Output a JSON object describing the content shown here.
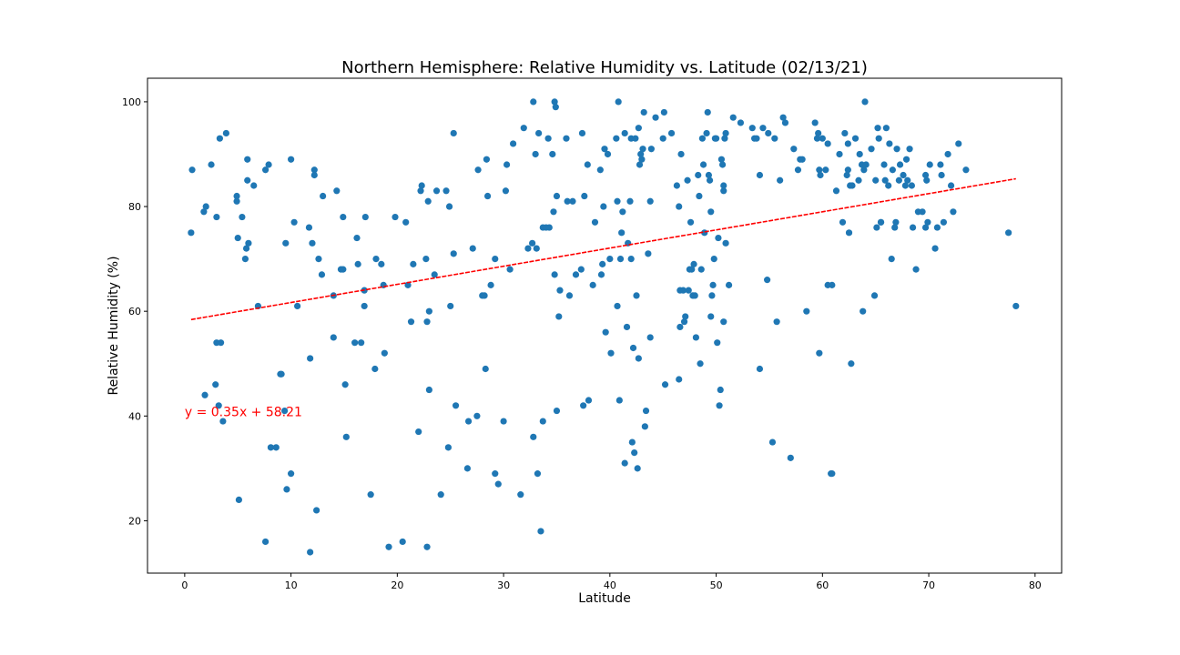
{
  "chart_data": {
    "type": "scatter",
    "title": "Northern Hemisphere:  Relative Humidity vs. Latitude (02/13/21)",
    "xlabel": "Latitude",
    "ylabel": "Relative Humidity (%)",
    "xlim": [
      -3.5,
      82.5
    ],
    "ylim": [
      10,
      104.5
    ],
    "xticks": [
      0,
      10,
      20,
      30,
      40,
      50,
      60,
      70,
      80
    ],
    "yticks": [
      20,
      40,
      60,
      80,
      100
    ],
    "grid": false,
    "point_color": "#1f77b4",
    "regression": {
      "equation_label": "y = 0.35x + 58.21",
      "slope": 0.3465,
      "intercept": 58.21,
      "x_range": [
        0.6,
        78.2
      ],
      "color": "#ff0000",
      "label_position_data": [
        0,
        40
      ]
    },
    "points": [
      [
        0.6,
        75
      ],
      [
        0.7,
        87
      ],
      [
        1.8,
        79
      ],
      [
        2.0,
        80
      ],
      [
        2.5,
        88
      ],
      [
        2.9,
        46
      ],
      [
        3.0,
        54
      ],
      [
        3.0,
        78
      ],
      [
        3.2,
        42
      ],
      [
        3.3,
        93
      ],
      [
        3.4,
        54
      ],
      [
        3.6,
        39
      ],
      [
        3.9,
        94
      ],
      [
        1.9,
        44
      ],
      [
        4.9,
        82
      ],
      [
        4.9,
        81
      ],
      [
        5.0,
        74
      ],
      [
        5.1,
        24
      ],
      [
        5.4,
        78
      ],
      [
        5.7,
        70
      ],
      [
        5.8,
        72
      ],
      [
        5.9,
        85
      ],
      [
        5.9,
        89
      ],
      [
        6.0,
        73
      ],
      [
        6.5,
        84
      ],
      [
        6.9,
        61
      ],
      [
        7.6,
        16
      ],
      [
        7.6,
        87
      ],
      [
        7.9,
        88
      ],
      [
        8.1,
        34
      ],
      [
        8.6,
        34
      ],
      [
        9.0,
        48
      ],
      [
        9.1,
        48
      ],
      [
        9.4,
        41
      ],
      [
        9.5,
        73
      ],
      [
        9.6,
        26
      ],
      [
        10.0,
        89
      ],
      [
        10.0,
        29
      ],
      [
        10.3,
        77
      ],
      [
        10.6,
        61
      ],
      [
        11.7,
        76
      ],
      [
        11.8,
        51
      ],
      [
        11.8,
        14
      ],
      [
        12.0,
        73
      ],
      [
        12.2,
        87
      ],
      [
        12.2,
        86
      ],
      [
        12.4,
        22
      ],
      [
        12.6,
        70
      ],
      [
        13.0,
        82
      ],
      [
        12.9,
        67
      ],
      [
        14.0,
        63
      ],
      [
        14.0,
        55
      ],
      [
        14.3,
        83
      ],
      [
        14.7,
        68
      ],
      [
        14.9,
        68
      ],
      [
        14.9,
        78
      ],
      [
        15.1,
        46
      ],
      [
        15.2,
        36
      ],
      [
        16.0,
        54
      ],
      [
        16.2,
        74
      ],
      [
        16.3,
        69
      ],
      [
        16.6,
        54
      ],
      [
        16.9,
        64
      ],
      [
        16.9,
        61
      ],
      [
        17.0,
        78
      ],
      [
        17.5,
        25
      ],
      [
        17.9,
        49
      ],
      [
        18.0,
        70
      ],
      [
        18.5,
        69
      ],
      [
        18.7,
        65
      ],
      [
        18.8,
        52
      ],
      [
        19.2,
        15
      ],
      [
        19.8,
        78
      ],
      [
        20.5,
        16
      ],
      [
        20.8,
        77
      ],
      [
        21.0,
        65
      ],
      [
        21.3,
        58
      ],
      [
        21.5,
        69
      ],
      [
        22.0,
        37
      ],
      [
        22.2,
        83
      ],
      [
        22.3,
        84
      ],
      [
        22.7,
        70
      ],
      [
        22.8,
        58
      ],
      [
        22.9,
        81
      ],
      [
        22.8,
        15
      ],
      [
        23.0,
        45
      ],
      [
        23.0,
        60
      ],
      [
        23.5,
        67
      ],
      [
        23.7,
        83
      ],
      [
        24.1,
        25
      ],
      [
        24.6,
        83
      ],
      [
        24.9,
        80
      ],
      [
        24.8,
        34
      ],
      [
        25.0,
        61
      ],
      [
        25.3,
        71
      ],
      [
        25.3,
        94
      ],
      [
        25.5,
        42
      ],
      [
        26.6,
        30
      ],
      [
        26.7,
        39
      ],
      [
        27.1,
        72
      ],
      [
        27.5,
        40
      ],
      [
        27.6,
        87
      ],
      [
        28.0,
        63
      ],
      [
        28.2,
        63
      ],
      [
        28.3,
        49
      ],
      [
        28.4,
        89
      ],
      [
        28.5,
        82
      ],
      [
        28.8,
        65
      ],
      [
        29.2,
        70
      ],
      [
        29.2,
        29
      ],
      [
        29.5,
        27
      ],
      [
        30.0,
        39
      ],
      [
        30.2,
        83
      ],
      [
        30.3,
        88
      ],
      [
        30.6,
        68
      ],
      [
        30.9,
        92
      ],
      [
        31.6,
        25
      ],
      [
        31.9,
        95
      ],
      [
        32.3,
        72
      ],
      [
        32.7,
        73
      ],
      [
        32.8,
        36
      ],
      [
        32.8,
        100
      ],
      [
        33.0,
        90
      ],
      [
        33.1,
        72
      ],
      [
        33.2,
        29
      ],
      [
        33.3,
        94
      ],
      [
        33.5,
        18
      ],
      [
        33.7,
        76
      ],
      [
        33.7,
        39
      ],
      [
        34.0,
        76
      ],
      [
        34.2,
        93
      ],
      [
        34.3,
        76
      ],
      [
        34.6,
        90
      ],
      [
        34.8,
        67
      ],
      [
        34.7,
        79
      ],
      [
        34.8,
        100
      ],
      [
        34.9,
        99
      ],
      [
        35.0,
        82
      ],
      [
        35.2,
        59
      ],
      [
        35.3,
        64
      ],
      [
        35.0,
        41
      ],
      [
        35.9,
        93
      ],
      [
        36.0,
        81
      ],
      [
        36.2,
        63
      ],
      [
        36.5,
        81
      ],
      [
        36.8,
        67
      ],
      [
        37.3,
        68
      ],
      [
        37.4,
        94
      ],
      [
        37.5,
        42
      ],
      [
        37.6,
        82
      ],
      [
        37.9,
        88
      ],
      [
        38.0,
        43
      ],
      [
        38.4,
        65
      ],
      [
        38.6,
        77
      ],
      [
        39.1,
        87
      ],
      [
        39.2,
        67
      ],
      [
        39.3,
        69
      ],
      [
        39.4,
        80
      ],
      [
        39.5,
        91
      ],
      [
        39.6,
        56
      ],
      [
        39.8,
        90
      ],
      [
        40.0,
        70
      ],
      [
        40.1,
        52
      ],
      [
        40.6,
        93
      ],
      [
        40.7,
        81
      ],
      [
        40.7,
        61
      ],
      [
        40.8,
        100
      ],
      [
        40.9,
        43
      ],
      [
        41.0,
        70
      ],
      [
        41.1,
        75
      ],
      [
        41.2,
        79
      ],
      [
        41.4,
        94
      ],
      [
        41.4,
        31
      ],
      [
        41.6,
        57
      ],
      [
        41.7,
        73
      ],
      [
        41.9,
        81
      ],
      [
        42.0,
        93
      ],
      [
        42.0,
        70
      ],
      [
        42.2,
        53
      ],
      [
        42.1,
        35
      ],
      [
        42.3,
        33
      ],
      [
        42.4,
        93
      ],
      [
        42.5,
        63
      ],
      [
        42.6,
        30
      ],
      [
        42.7,
        95
      ],
      [
        42.7,
        51
      ],
      [
        42.8,
        88
      ],
      [
        42.9,
        90
      ],
      [
        43.0,
        89
      ],
      [
        43.1,
        91
      ],
      [
        43.2,
        98
      ],
      [
        43.3,
        38
      ],
      [
        43.4,
        41
      ],
      [
        43.6,
        71
      ],
      [
        43.8,
        81
      ],
      [
        43.8,
        55
      ],
      [
        43.9,
        91
      ],
      [
        44.3,
        97
      ],
      [
        45.0,
        93
      ],
      [
        45.1,
        98
      ],
      [
        45.2,
        46
      ],
      [
        45.8,
        94
      ],
      [
        46.3,
        84
      ],
      [
        46.5,
        80
      ],
      [
        46.5,
        47
      ],
      [
        46.6,
        57
      ],
      [
        46.6,
        64
      ],
      [
        46.7,
        90
      ],
      [
        46.9,
        64
      ],
      [
        47.0,
        58
      ],
      [
        47.1,
        59
      ],
      [
        47.3,
        85
      ],
      [
        47.4,
        64
      ],
      [
        47.5,
        68
      ],
      [
        47.6,
        77
      ],
      [
        47.7,
        68
      ],
      [
        47.8,
        63
      ],
      [
        47.9,
        69
      ],
      [
        48.0,
        63
      ],
      [
        48.1,
        55
      ],
      [
        48.3,
        86
      ],
      [
        48.4,
        82
      ],
      [
        48.5,
        50
      ],
      [
        48.6,
        68
      ],
      [
        48.7,
        93
      ],
      [
        48.8,
        88
      ],
      [
        48.9,
        75
      ],
      [
        49.1,
        94
      ],
      [
        49.2,
        98
      ],
      [
        49.3,
        86
      ],
      [
        49.4,
        85
      ],
      [
        49.5,
        59
      ],
      [
        49.5,
        79
      ],
      [
        49.6,
        63
      ],
      [
        49.7,
        65
      ],
      [
        49.8,
        70
      ],
      [
        49.9,
        93
      ],
      [
        50.0,
        93
      ],
      [
        50.2,
        74
      ],
      [
        50.1,
        54
      ],
      [
        50.3,
        42
      ],
      [
        50.4,
        45
      ],
      [
        50.5,
        89
      ],
      [
        50.6,
        88
      ],
      [
        50.7,
        84
      ],
      [
        50.7,
        83
      ],
      [
        50.8,
        93
      ],
      [
        50.9,
        94
      ],
      [
        50.7,
        58
      ],
      [
        50.9,
        73
      ],
      [
        51.2,
        65
      ],
      [
        51.6,
        97
      ],
      [
        52.3,
        96
      ],
      [
        53.4,
        95
      ],
      [
        53.6,
        93
      ],
      [
        53.8,
        93
      ],
      [
        54.1,
        86
      ],
      [
        54.1,
        49
      ],
      [
        54.4,
        95
      ],
      [
        54.8,
        66
      ],
      [
        54.9,
        94
      ],
      [
        55.3,
        35
      ],
      [
        55.5,
        93
      ],
      [
        55.7,
        58
      ],
      [
        56.0,
        85
      ],
      [
        56.3,
        97
      ],
      [
        56.5,
        96
      ],
      [
        57.0,
        32
      ],
      [
        57.3,
        91
      ],
      [
        57.7,
        87
      ],
      [
        57.9,
        89
      ],
      [
        58.1,
        89
      ],
      [
        58.5,
        60
      ],
      [
        59.3,
        96
      ],
      [
        59.5,
        93
      ],
      [
        59.6,
        94
      ],
      [
        59.7,
        87
      ],
      [
        59.8,
        86
      ],
      [
        59.7,
        52
      ],
      [
        60.0,
        93
      ],
      [
        60.3,
        87
      ],
      [
        60.5,
        92
      ],
      [
        60.5,
        65
      ],
      [
        60.8,
        29
      ],
      [
        60.9,
        65
      ],
      [
        60.9,
        29
      ],
      [
        61.3,
        83
      ],
      [
        61.6,
        90
      ],
      [
        61.9,
        77
      ],
      [
        62.1,
        94
      ],
      [
        62.3,
        86
      ],
      [
        62.4,
        87
      ],
      [
        62.4,
        92
      ],
      [
        62.5,
        75
      ],
      [
        62.6,
        84
      ],
      [
        62.8,
        84
      ],
      [
        62.7,
        50
      ],
      [
        63.1,
        93
      ],
      [
        63.4,
        85
      ],
      [
        63.5,
        90
      ],
      [
        63.7,
        88
      ],
      [
        63.8,
        60
      ],
      [
        63.9,
        87
      ],
      [
        64.0,
        100
      ],
      [
        64.1,
        88
      ],
      [
        64.6,
        91
      ],
      [
        64.9,
        63
      ],
      [
        65.0,
        85
      ],
      [
        65.1,
        76
      ],
      [
        65.2,
        95
      ],
      [
        65.3,
        93
      ],
      [
        65.5,
        77
      ],
      [
        65.5,
        77
      ],
      [
        65.8,
        88
      ],
      [
        65.9,
        85
      ],
      [
        66.0,
        95
      ],
      [
        66.2,
        84
      ],
      [
        66.3,
        92
      ],
      [
        66.5,
        70
      ],
      [
        66.6,
        87
      ],
      [
        66.8,
        76
      ],
      [
        66.9,
        77
      ],
      [
        67.0,
        91
      ],
      [
        67.2,
        85
      ],
      [
        67.3,
        88
      ],
      [
        67.6,
        86
      ],
      [
        67.8,
        84
      ],
      [
        67.9,
        89
      ],
      [
        68.0,
        85
      ],
      [
        68.2,
        91
      ],
      [
        68.4,
        84
      ],
      [
        68.5,
        76
      ],
      [
        68.8,
        68
      ],
      [
        69.0,
        79
      ],
      [
        69.4,
        79
      ],
      [
        69.7,
        86
      ],
      [
        69.8,
        85
      ],
      [
        69.9,
        77
      ],
      [
        69.7,
        76
      ],
      [
        70.1,
        88
      ],
      [
        70.6,
        72
      ],
      [
        70.8,
        76
      ],
      [
        71.1,
        88
      ],
      [
        71.2,
        86
      ],
      [
        71.4,
        77
      ],
      [
        71.8,
        90
      ],
      [
        72.1,
        84
      ],
      [
        72.3,
        79
      ],
      [
        72.8,
        92
      ],
      [
        73.5,
        87
      ],
      [
        77.5,
        75
      ],
      [
        78.2,
        61
      ]
    ]
  }
}
